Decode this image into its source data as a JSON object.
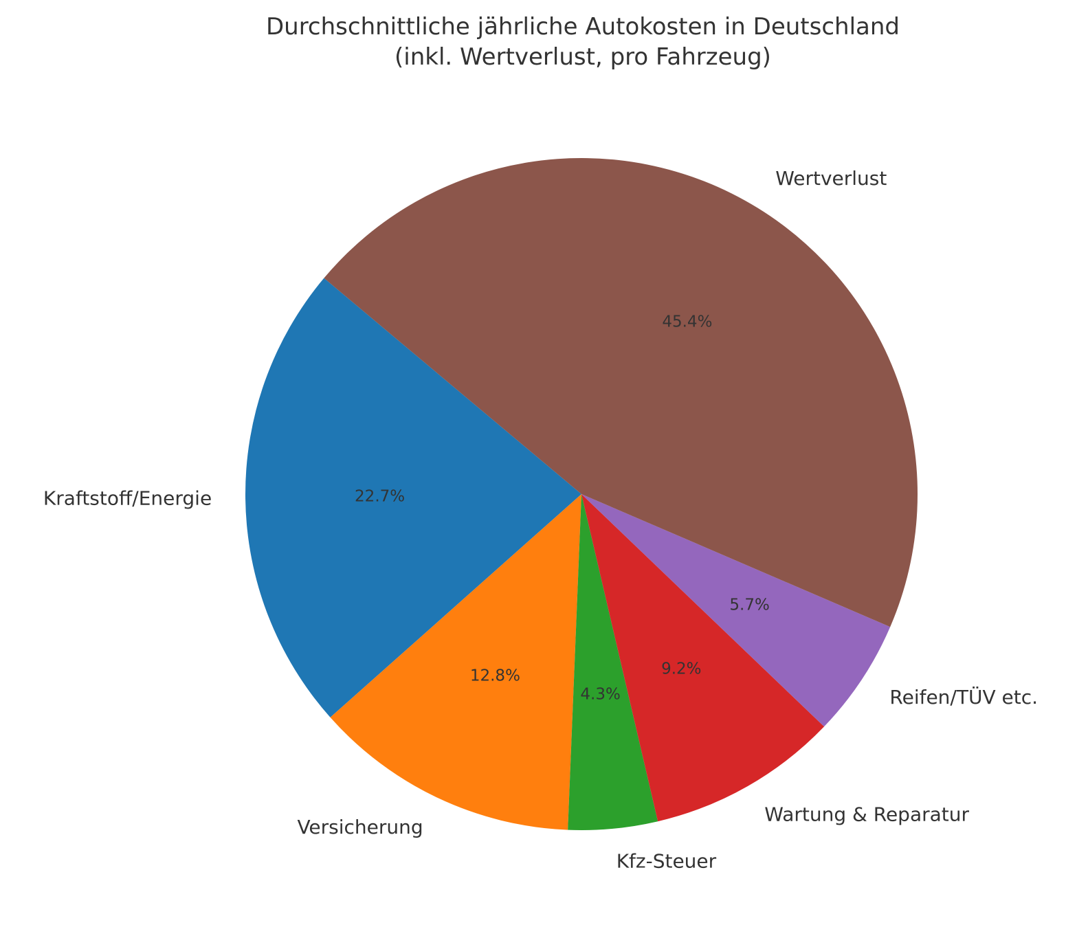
{
  "chart_data": {
    "type": "pie",
    "title_lines": [
      "Durchschnittliche jährliche Autokosten in Deutschland",
      "(inkl. Wertverlust, pro Fahrzeug)"
    ],
    "start_angle_deg": 140,
    "direction": "counterclockwise",
    "slices": [
      {
        "label": "Kraftstoff/Energie",
        "value": 22.7,
        "pct_label": "22.7%",
        "color": "#1f77b4"
      },
      {
        "label": "Versicherung",
        "value": 12.8,
        "pct_label": "12.8%",
        "color": "#ff7f0e"
      },
      {
        "label": "Kfz-Steuer",
        "value": 4.3,
        "pct_label": "4.3%",
        "color": "#2ca02c"
      },
      {
        "label": "Wartung & Reparatur",
        "value": 9.2,
        "pct_label": "9.2%",
        "color": "#d62728"
      },
      {
        "label": "Reifen/TÜV etc.",
        "value": 5.7,
        "pct_label": "5.7%",
        "color": "#9467bd"
      },
      {
        "label": "Wertverlust",
        "value": 45.4,
        "pct_label": "45.4%",
        "color": "#8c564b"
      }
    ]
  }
}
